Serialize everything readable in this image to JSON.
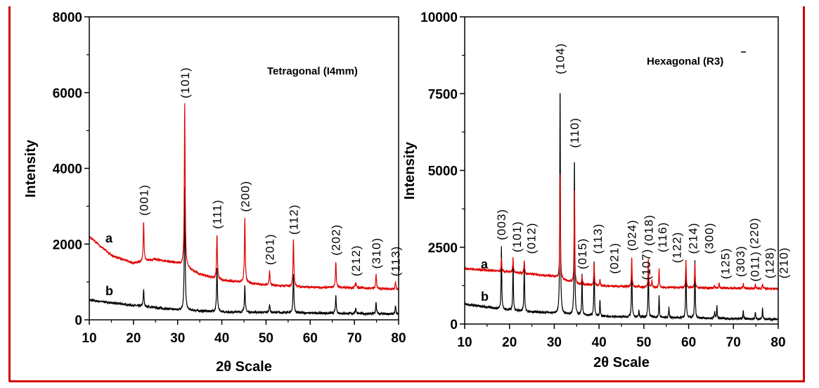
{
  "colors": {
    "frame": "#d40000",
    "series_a": "#000000",
    "series_b": "#e00000"
  },
  "chart_data": [
    {
      "type": "line",
      "title": "Tetragonal (I4mm)",
      "xlabel": "2θ Scale",
      "ylabel": "Intensity",
      "xlim": [
        10,
        80
      ],
      "ylim": [
        0,
        8000
      ],
      "xticks": [
        "10",
        "20",
        "30",
        "40",
        "50",
        "60",
        "70",
        "80"
      ],
      "yticks": [
        "0",
        "2000",
        "4000",
        "6000",
        "8000"
      ],
      "series": [
        {
          "name": "a",
          "baseline": [
            [
              10,
              520
            ],
            [
              20,
              380
            ],
            [
              30,
              260
            ],
            [
              40,
              210
            ],
            [
              60,
              180
            ],
            [
              80,
              150
            ]
          ],
          "peaks": [
            [
              22.3,
              800
            ],
            [
              31.6,
              3500
            ],
            [
              38.9,
              1400
            ],
            [
              45.2,
              900
            ],
            [
              50.8,
              420
            ],
            [
              56.2,
              1200
            ],
            [
              65.8,
              620
            ],
            [
              70.3,
              320
            ],
            [
              74.9,
              460
            ],
            [
              79.3,
              360
            ]
          ]
        },
        {
          "name": "b",
          "baseline": [
            [
              10,
              2200
            ],
            [
              15,
              1700
            ],
            [
              20,
              1500
            ],
            [
              25,
              1600
            ],
            [
              30,
              1500
            ],
            [
              35,
              1200
            ],
            [
              40,
              1050
            ],
            [
              50,
              920
            ],
            [
              60,
              860
            ],
            [
              70,
              850
            ],
            [
              80,
              800
            ]
          ],
          "peaks": [
            [
              22.3,
              2600
            ],
            [
              31.6,
              5700
            ],
            [
              38.9,
              2250
            ],
            [
              45.2,
              2700
            ],
            [
              50.8,
              1300
            ],
            [
              56.2,
              2100
            ],
            [
              65.8,
              1550
            ],
            [
              70.3,
              1000
            ],
            [
              74.9,
              1200
            ],
            [
              79.3,
              1000
            ]
          ]
        }
      ],
      "peak_labels": [
        [
          "(001)",
          22.3,
          2600
        ],
        [
          "(101)",
          31.6,
          5700
        ],
        [
          "(111)",
          38.9,
          2250
        ],
        [
          "(200)",
          45.2,
          2700
        ],
        [
          "(201)",
          50.8,
          1300
        ],
        [
          "(112)",
          56.2,
          2100
        ],
        [
          "(202)",
          65.8,
          1550
        ],
        [
          "(212)",
          70.3,
          1000
        ],
        [
          "(310)",
          74.9,
          1200
        ],
        [
          "(113)",
          79.3,
          1000
        ]
      ]
    },
    {
      "type": "line",
      "title": "Hexagonal (R3)",
      "xlabel": "2θ Scale",
      "ylabel": "Intensity",
      "xlim": [
        10,
        80
      ],
      "ylim": [
        0,
        10000
      ],
      "xticks": [
        "10",
        "20",
        "30",
        "40",
        "50",
        "60",
        "70",
        "80"
      ],
      "yticks": [
        "0",
        "2500",
        "5000",
        "7500",
        "10000"
      ],
      "series": [
        {
          "name": "a",
          "baseline": [
            [
              10,
              650
            ],
            [
              20,
              450
            ],
            [
              30,
              350
            ],
            [
              40,
              250
            ],
            [
              60,
              200
            ],
            [
              80,
              150
            ]
          ],
          "peaks": [
            [
              18.2,
              2550
            ],
            [
              20.8,
              2100
            ],
            [
              23.3,
              2100
            ],
            [
              31.3,
              7950
            ],
            [
              34.5,
              5550
            ],
            [
              36.2,
              1600
            ],
            [
              38.9,
              2100
            ],
            [
              40.2,
              800
            ],
            [
              47.3,
              2100
            ],
            [
              48.9,
              450
            ],
            [
              51.0,
              2100
            ],
            [
              53.4,
              900
            ],
            [
              55.6,
              550
            ],
            [
              59.4,
              2100
            ],
            [
              61.4,
              2100
            ],
            [
              65.8,
              400
            ],
            [
              66.3,
              600
            ],
            [
              72.2,
              450
            ],
            [
              74.9,
              400
            ],
            [
              76.5,
              500
            ]
          ]
        },
        {
          "name": "b",
          "baseline": [
            [
              10,
              1800
            ],
            [
              20,
              1700
            ],
            [
              30,
              1550
            ],
            [
              35,
              1300
            ],
            [
              40,
              1250
            ],
            [
              50,
              1200
            ],
            [
              80,
              1150
            ]
          ],
          "peaks": [
            [
              18.2,
              2150
            ],
            [
              20.8,
              2150
            ],
            [
              23.3,
              2100
            ],
            [
              31.3,
              5100
            ],
            [
              34.5,
              4500
            ],
            [
              36.2,
              1550
            ],
            [
              38.9,
              2000
            ],
            [
              40.2,
              1450
            ],
            [
              47.3,
              2200
            ],
            [
              48.9,
              1250
            ],
            [
              51.0,
              2150
            ],
            [
              51.8,
              1450
            ],
            [
              53.4,
              1800
            ],
            [
              59.4,
              2050
            ],
            [
              61.4,
              1950
            ],
            [
              65.8,
              1280
            ],
            [
              66.8,
              1350
            ],
            [
              72.2,
              1350
            ],
            [
              74.9,
              1300
            ],
            [
              76.5,
              1300
            ]
          ]
        }
      ],
      "peak_labels": [
        [
          "(003)",
          18.2,
          2550
        ],
        [
          "(101)",
          20.8,
          2150
        ],
        [
          "(012)",
          23.3,
          2100
        ],
        [
          "(104)",
          31.3,
          7950
        ],
        [
          "(110)",
          34.5,
          5550
        ],
        [
          "(015)",
          36.2,
          1600
        ],
        [
          "(113)",
          38.9,
          2100
        ],
        [
          "(021)",
          40.2,
          1450
        ],
        [
          "(024)",
          47.3,
          2200
        ],
        [
          "(107)",
          48.9,
          1250
        ],
        [
          "(116)",
          51.0,
          2150
        ],
        [
          "(018)",
          51.8,
          1450
        ],
        [
          "(122)",
          53.4,
          1800
        ],
        [
          "(214)",
          59.4,
          2100
        ],
        [
          "(300)",
          61.4,
          2100
        ],
        [
          "(125)",
          65.8,
          1280
        ],
        [
          "(303)",
          66.8,
          1350
        ],
        [
          "(011)",
          70.0,
          1200
        ],
        [
          "(220)",
          72.2,
          1350
        ],
        [
          "(128)",
          74.9,
          1300
        ],
        [
          "(210)",
          76.5,
          1300
        ]
      ]
    }
  ]
}
